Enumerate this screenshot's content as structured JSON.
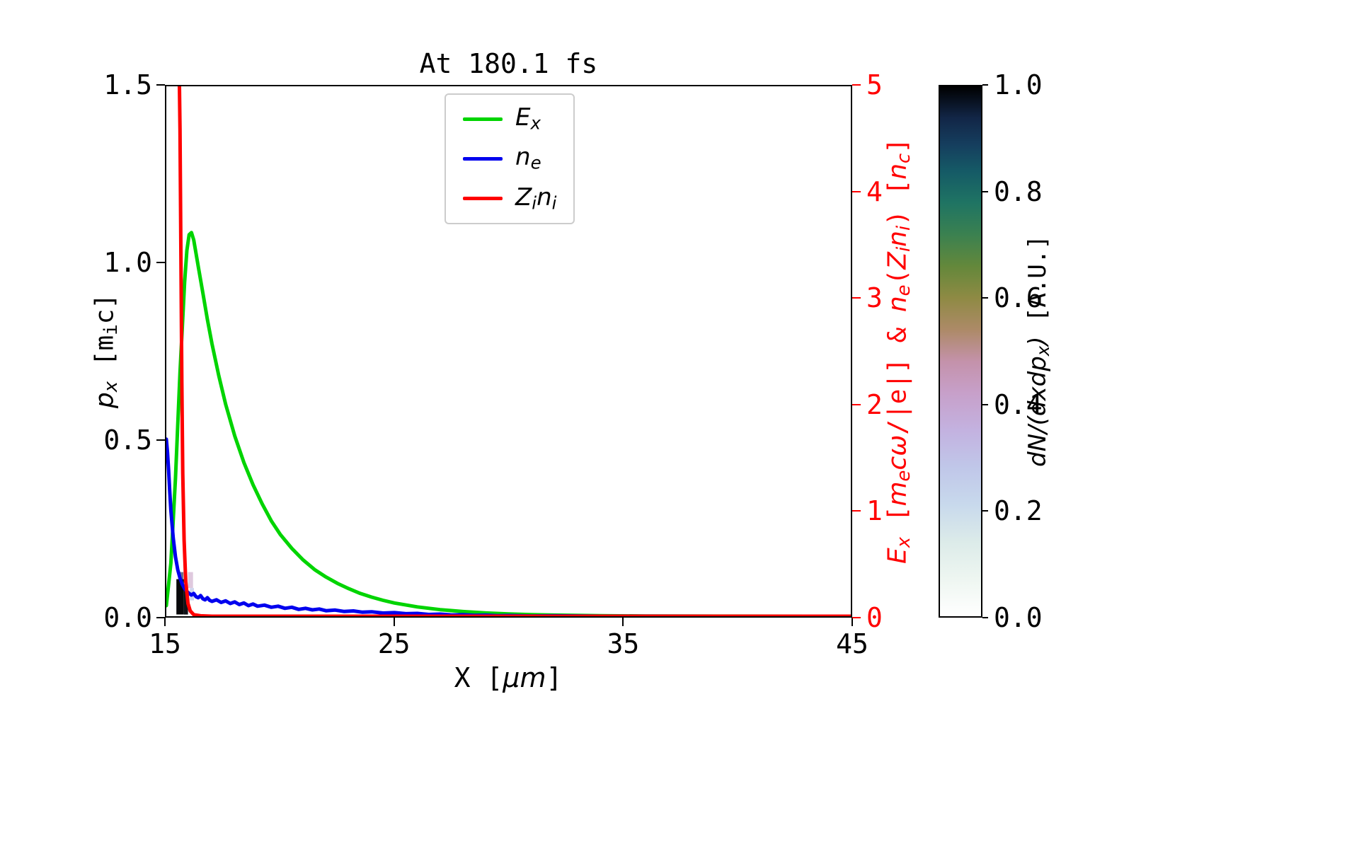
{
  "title": "At 180.1 fs",
  "axes": {
    "xlabel_parts": [
      {
        "t": "X [",
        "s": "n"
      },
      {
        "t": "μm",
        "s": "i"
      },
      {
        "t": "]",
        "s": "n"
      }
    ],
    "ylabel_left_parts": [
      {
        "t": "p",
        "s": "i"
      },
      {
        "t": "x",
        "s": "si"
      },
      {
        "t": " [m",
        "s": "n"
      },
      {
        "t": "i",
        "s": "sn"
      },
      {
        "t": "c]",
        "s": "n"
      }
    ],
    "ylabel_right_parts": [
      {
        "t": "E",
        "s": "i"
      },
      {
        "t": "x",
        "s": "si"
      },
      {
        "t": " [",
        "s": "n"
      },
      {
        "t": "m",
        "s": "i"
      },
      {
        "t": "e",
        "s": "si"
      },
      {
        "t": "cω",
        "s": "i"
      },
      {
        "t": "/|e|] & ",
        "s": "n"
      },
      {
        "t": "n",
        "s": "i"
      },
      {
        "t": "e",
        "s": "si"
      },
      {
        "t": "(",
        "s": "n"
      },
      {
        "t": "Z",
        "s": "i"
      },
      {
        "t": "i",
        "s": "si"
      },
      {
        "t": "n",
        "s": "i"
      },
      {
        "t": "i",
        "s": "si"
      },
      {
        "t": ") [",
        "s": "n"
      },
      {
        "t": "n",
        "s": "i"
      },
      {
        "t": "c",
        "s": "si"
      },
      {
        "t": "]",
        "s": "n"
      }
    ],
    "xticks": {
      "values": [
        15,
        25,
        35,
        45
      ],
      "labels": [
        "15",
        "25",
        "35",
        "45"
      ]
    },
    "yticks_left": {
      "values": [
        0.0,
        0.5,
        1.0,
        1.5
      ],
      "labels": [
        "0.0",
        "0.5",
        "1.0",
        "1.5"
      ]
    },
    "yticks_right": {
      "values": [
        0,
        1,
        2,
        3,
        4,
        5
      ],
      "labels": [
        "0",
        "1",
        "2",
        "3",
        "4",
        "5"
      ]
    },
    "right_axis_color": "#ff0000"
  },
  "legend": {
    "entries": [
      {
        "id": "Ex",
        "color": "#00d400",
        "parts": [
          {
            "t": "E",
            "s": "i"
          },
          {
            "t": "x",
            "s": "si"
          }
        ]
      },
      {
        "id": "ne",
        "color": "#0000ee",
        "parts": [
          {
            "t": "n",
            "s": "i"
          },
          {
            "t": "e",
            "s": "si"
          }
        ]
      },
      {
        "id": "Zini",
        "color": "#ff0000",
        "parts": [
          {
            "t": "Z",
            "s": "i"
          },
          {
            "t": "i",
            "s": "si"
          },
          {
            "t": "n",
            "s": "i"
          },
          {
            "t": "i",
            "s": "si"
          }
        ]
      }
    ]
  },
  "colorbar": {
    "label_parts": [
      {
        "t": "dN",
        "s": "i"
      },
      {
        "t": "/(",
        "s": "i"
      },
      {
        "t": "dxdp",
        "s": "i"
      },
      {
        "t": "x",
        "s": "si"
      },
      {
        "t": ")",
        "s": "i"
      },
      {
        "t": " [A.U.]",
        "s": "n"
      }
    ],
    "ticks": {
      "values": [
        0,
        0.2,
        0.4,
        0.6,
        0.8,
        1.0
      ],
      "labels": [
        "0.0",
        "0.2",
        "0.4",
        "0.6",
        "0.8",
        "1.0"
      ]
    },
    "gradient_stops": [
      {
        "p": 0.0,
        "c": "#ffffff"
      },
      {
        "p": 0.07,
        "c": "#eef6f1"
      },
      {
        "p": 0.14,
        "c": "#dcebe9"
      },
      {
        "p": 0.21,
        "c": "#c8d9ec"
      },
      {
        "p": 0.28,
        "c": "#c0c7e9"
      },
      {
        "p": 0.35,
        "c": "#c3b2e0"
      },
      {
        "p": 0.42,
        "c": "#c7a0ca"
      },
      {
        "p": 0.48,
        "c": "#c492ab"
      },
      {
        "p": 0.54,
        "c": "#ad8a68"
      },
      {
        "p": 0.6,
        "c": "#8f8a44"
      },
      {
        "p": 0.66,
        "c": "#64883b"
      },
      {
        "p": 0.72,
        "c": "#3b8150"
      },
      {
        "p": 0.78,
        "c": "#1f7463"
      },
      {
        "p": 0.84,
        "c": "#155a66"
      },
      {
        "p": 0.89,
        "c": "#153e5e"
      },
      {
        "p": 0.94,
        "c": "#122647"
      },
      {
        "p": 1.0,
        "c": "#000000"
      }
    ]
  },
  "chart_data": {
    "type": "line",
    "title": "At 180.1 fs",
    "xlabel": "X [μm]",
    "ylabel_left": "p_x [m_i c]",
    "ylabel_right": "E_x [m_e cω/|e|] & n_e(Z_i n_i) [n_c]",
    "colorbar_label": "dN/(dxdp_x) [A.U.]",
    "xlim": [
      15,
      45
    ],
    "ylim_left": [
      0,
      1.5
    ],
    "ylim_right": [
      0,
      5
    ],
    "legend_position": "upper center",
    "grid": false,
    "series": [
      {
        "id": "Ex",
        "name": "E_x",
        "axis": "right",
        "color": "#00d400",
        "points": [
          [
            15.0,
            0.1
          ],
          [
            15.2,
            0.5
          ],
          [
            15.4,
            1.3
          ],
          [
            15.6,
            2.3
          ],
          [
            15.8,
            3.15
          ],
          [
            15.9,
            3.45
          ],
          [
            16.0,
            3.6
          ],
          [
            16.1,
            3.62
          ],
          [
            16.2,
            3.55
          ],
          [
            16.4,
            3.3
          ],
          [
            16.6,
            3.05
          ],
          [
            16.8,
            2.8
          ],
          [
            17.0,
            2.57
          ],
          [
            17.3,
            2.27
          ],
          [
            17.6,
            2.0
          ],
          [
            18.0,
            1.7
          ],
          [
            18.4,
            1.45
          ],
          [
            18.8,
            1.24
          ],
          [
            19.2,
            1.06
          ],
          [
            19.6,
            0.9
          ],
          [
            20.0,
            0.77
          ],
          [
            20.5,
            0.64
          ],
          [
            21.0,
            0.53
          ],
          [
            21.5,
            0.44
          ],
          [
            22.0,
            0.37
          ],
          [
            22.5,
            0.31
          ],
          [
            23.0,
            0.26
          ],
          [
            23.5,
            0.215
          ],
          [
            24.0,
            0.18
          ],
          [
            24.5,
            0.15
          ],
          [
            25.0,
            0.125
          ],
          [
            26.0,
            0.088
          ],
          [
            27.0,
            0.062
          ],
          [
            28.0,
            0.044
          ],
          [
            29.0,
            0.031
          ],
          [
            30.0,
            0.022
          ],
          [
            31.0,
            0.015
          ],
          [
            32.0,
            0.011
          ],
          [
            34.0,
            0.005
          ],
          [
            36.0,
            0.002
          ],
          [
            40.0,
            0.001
          ],
          [
            45.0,
            0.0
          ]
        ]
      },
      {
        "id": "ne",
        "name": "n_e",
        "axis": "right",
        "color": "#0000ee",
        "points": [
          [
            15.0,
            1.67
          ],
          [
            15.05,
            1.55
          ],
          [
            15.1,
            1.38
          ],
          [
            15.15,
            1.18
          ],
          [
            15.2,
            1.0
          ],
          [
            15.3,
            0.74
          ],
          [
            15.4,
            0.56
          ],
          [
            15.5,
            0.44
          ],
          [
            15.6,
            0.36
          ],
          [
            15.7,
            0.3
          ],
          [
            15.8,
            0.26
          ],
          [
            15.9,
            0.235
          ],
          [
            16.0,
            0.215
          ],
          [
            16.1,
            0.2
          ],
          [
            16.2,
            0.215
          ],
          [
            16.3,
            0.185
          ],
          [
            16.4,
            0.175
          ],
          [
            16.5,
            0.195
          ],
          [
            16.6,
            0.165
          ],
          [
            16.7,
            0.155
          ],
          [
            16.8,
            0.175
          ],
          [
            16.9,
            0.15
          ],
          [
            17.0,
            0.14
          ],
          [
            17.2,
            0.155
          ],
          [
            17.4,
            0.13
          ],
          [
            17.6,
            0.145
          ],
          [
            17.8,
            0.12
          ],
          [
            18.0,
            0.135
          ],
          [
            18.2,
            0.11
          ],
          [
            18.4,
            0.125
          ],
          [
            18.6,
            0.1
          ],
          [
            18.8,
            0.115
          ],
          [
            19.0,
            0.095
          ],
          [
            19.3,
            0.105
          ],
          [
            19.6,
            0.085
          ],
          [
            19.9,
            0.095
          ],
          [
            20.2,
            0.075
          ],
          [
            20.5,
            0.085
          ],
          [
            20.8,
            0.065
          ],
          [
            21.1,
            0.075
          ],
          [
            21.4,
            0.06
          ],
          [
            21.7,
            0.068
          ],
          [
            22.0,
            0.052
          ],
          [
            22.4,
            0.058
          ],
          [
            22.8,
            0.045
          ],
          [
            23.2,
            0.05
          ],
          [
            23.6,
            0.038
          ],
          [
            24.0,
            0.042
          ],
          [
            24.5,
            0.03
          ],
          [
            25.0,
            0.034
          ],
          [
            25.5,
            0.024
          ],
          [
            26.0,
            0.027
          ],
          [
            26.5,
            0.017
          ],
          [
            27.0,
            0.02
          ],
          [
            27.5,
            0.012
          ],
          [
            28.0,
            0.014
          ],
          [
            28.5,
            0.008
          ],
          [
            29.0,
            0.01
          ],
          [
            29.5,
            0.005
          ],
          [
            30.0,
            0.007
          ],
          [
            31.0,
            0.003
          ],
          [
            32.0,
            0.004
          ],
          [
            34.0,
            0.001
          ],
          [
            36.0,
            0.001
          ],
          [
            40.0,
            0.0
          ],
          [
            45.0,
            0.0
          ]
        ]
      },
      {
        "id": "Zini",
        "name": "Z_i n_i",
        "axis": "right",
        "color": "#ff0000",
        "points": [
          [
            15.0,
            5.4
          ],
          [
            15.55,
            5.4
          ],
          [
            15.6,
            4.6
          ],
          [
            15.64,
            3.4
          ],
          [
            15.68,
            2.2
          ],
          [
            15.72,
            1.35
          ],
          [
            15.78,
            0.72
          ],
          [
            15.85,
            0.33
          ],
          [
            15.95,
            0.12
          ],
          [
            16.05,
            0.05
          ],
          [
            16.2,
            0.015
          ],
          [
            16.5,
            0.004
          ],
          [
            17.0,
            0.0
          ],
          [
            45.0,
            0.0
          ]
        ]
      }
    ],
    "histogram": {
      "label": "dN/(dxdp_x) [A.U.]",
      "units": "A.U.",
      "value_range": [
        0.0,
        1.0
      ],
      "cells": [
        {
          "x": 15.44,
          "p": 0.005,
          "w": 0.33,
          "h": 0.1,
          "c": "#08080a"
        },
        {
          "x": 15.77,
          "p": 0.005,
          "w": 0.18,
          "h": 0.075,
          "c": "#101318"
        },
        {
          "x": 15.6,
          "p": 0.105,
          "w": 0.15,
          "h": 0.02,
          "c": "#6d7488"
        },
        {
          "x": 15.95,
          "p": 0.08,
          "w": 0.22,
          "h": 0.045,
          "c": "#dfc9de"
        },
        {
          "x": 16.03,
          "p": 0.045,
          "w": 0.18,
          "h": 0.035,
          "c": "#cfd6ee"
        }
      ]
    }
  }
}
